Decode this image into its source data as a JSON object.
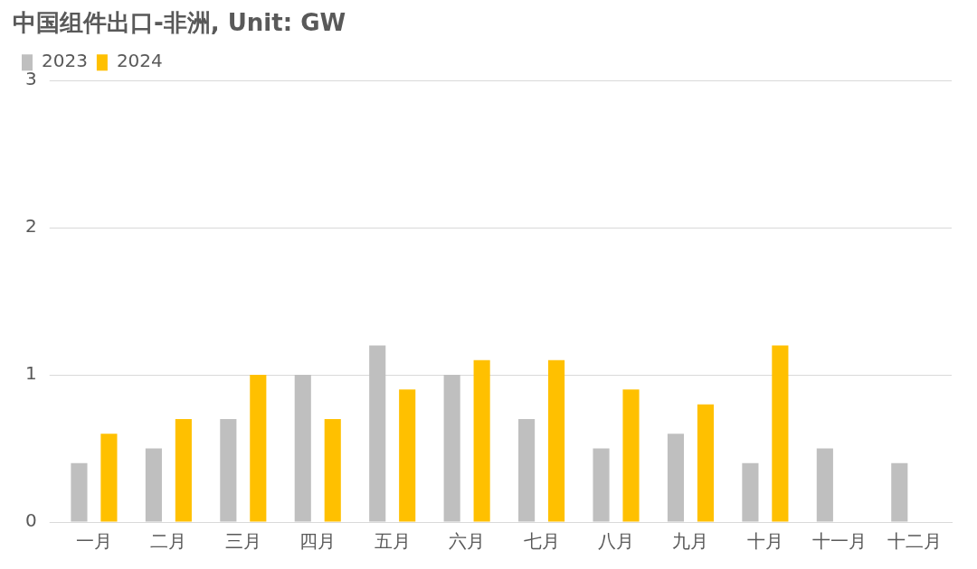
{
  "chart_data": {
    "type": "bar",
    "title": "中国组件出口-非洲, Unit: GW",
    "categories": [
      "一月",
      "二月",
      "三月",
      "四月",
      "五月",
      "六月",
      "七月",
      "八月",
      "九月",
      "十月",
      "十一月",
      "十二月"
    ],
    "series": [
      {
        "name": "2023",
        "color": "#bfbfbf",
        "values": [
          0.4,
          0.5,
          0.7,
          1.0,
          1.2,
          1.0,
          0.7,
          0.5,
          0.6,
          0.4,
          0.5,
          0.4
        ]
      },
      {
        "name": "2024",
        "color": "#ffc000",
        "values": [
          0.6,
          0.7,
          1.0,
          0.7,
          0.9,
          1.1,
          1.1,
          0.9,
          0.8,
          1.2,
          null,
          null
        ]
      }
    ],
    "ylim": [
      0,
      3
    ],
    "yticks": [
      0,
      1,
      2,
      3
    ],
    "grid": "y",
    "legend": "top left"
  }
}
